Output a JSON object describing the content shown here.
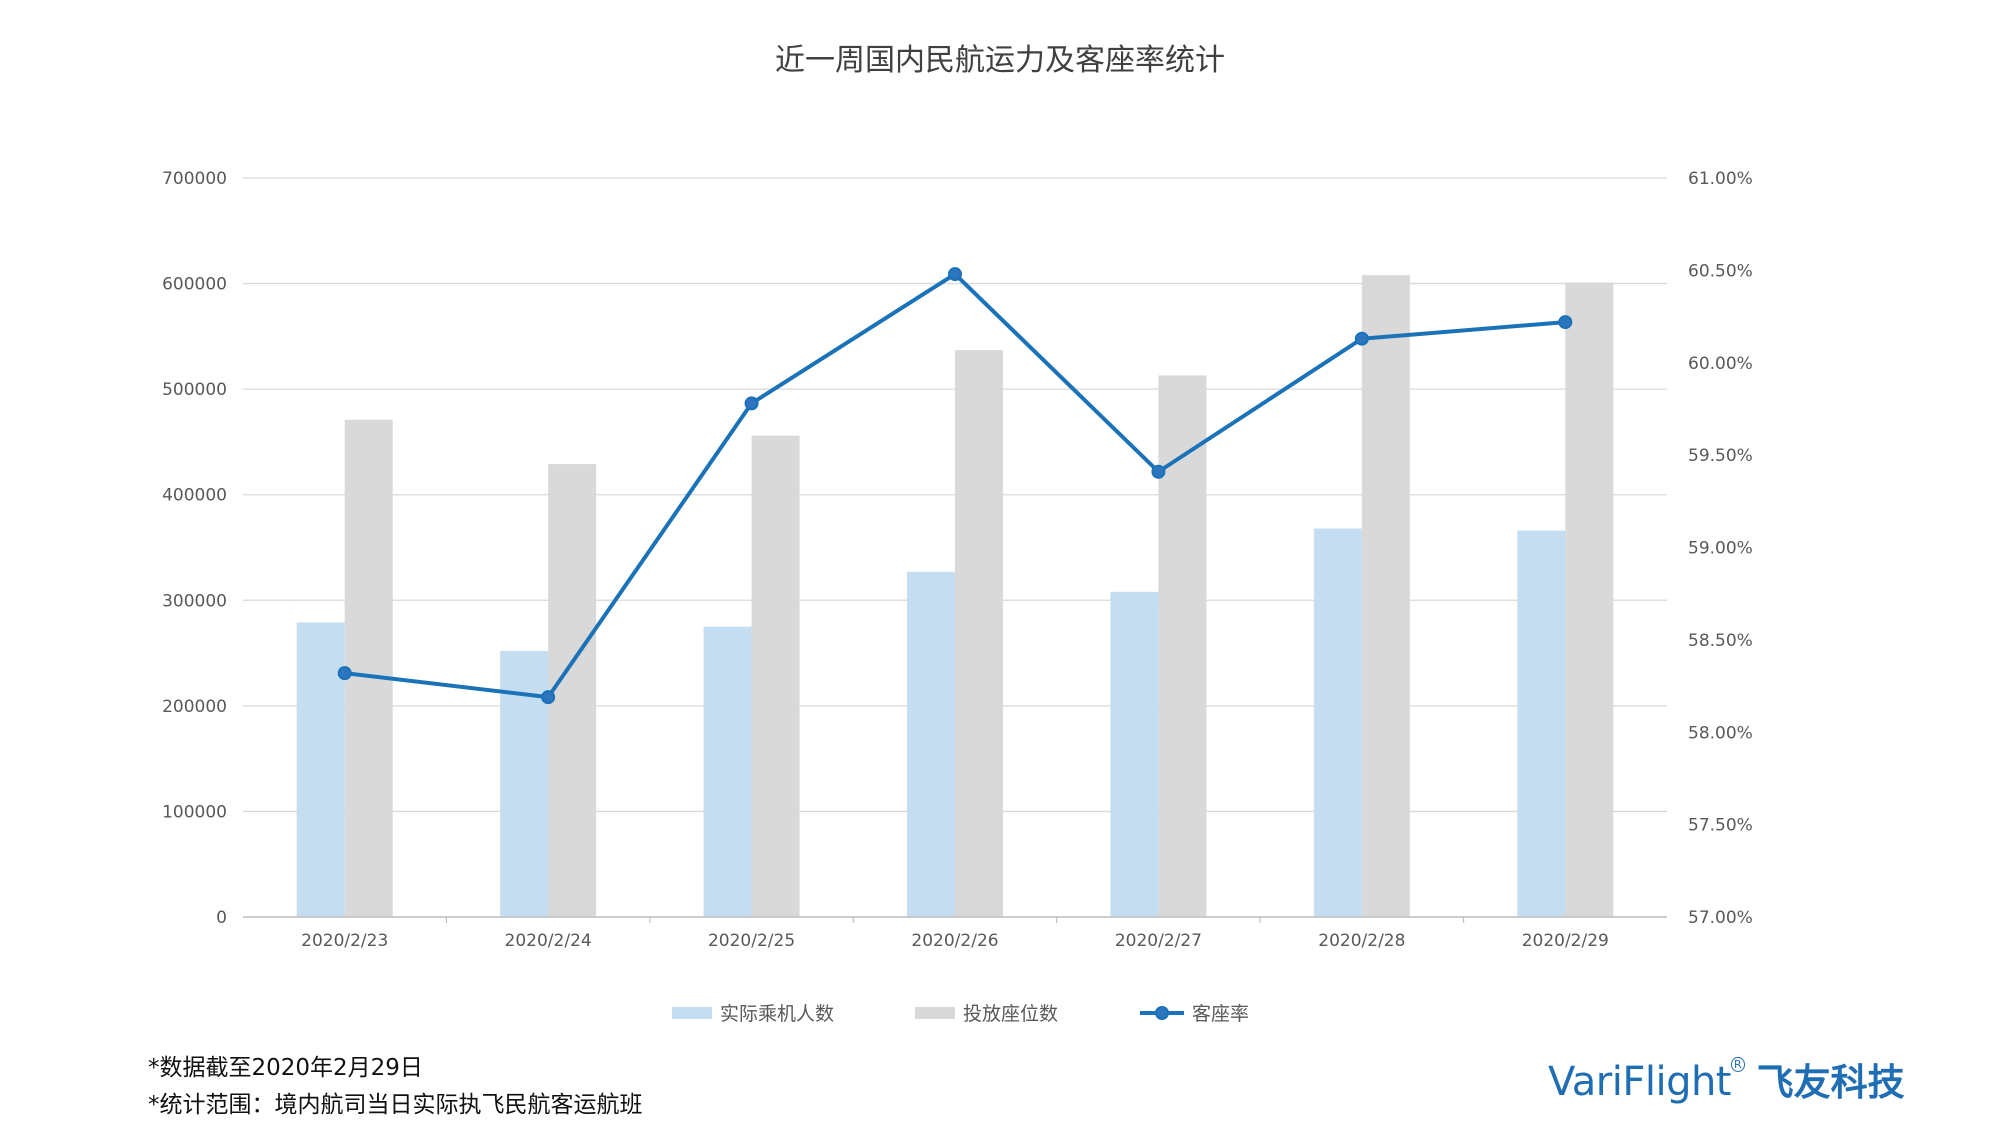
{
  "chart_data": {
    "type": "bar",
    "title": "近一周国内民航运力及客座率统计",
    "categories": [
      "2020/2/23",
      "2020/2/24",
      "2020/2/25",
      "2020/2/26",
      "2020/2/27",
      "2020/2/28",
      "2020/2/29"
    ],
    "series": [
      {
        "name": "实际乘机人数",
        "type": "bar",
        "axis": "left",
        "color": "#c5ddf1",
        "values": [
          279000,
          252000,
          275000,
          327000,
          308000,
          368000,
          366000
        ]
      },
      {
        "name": "投放座位数",
        "type": "bar",
        "axis": "left",
        "color": "#d9d9d9",
        "values": [
          471000,
          429000,
          456000,
          537000,
          513000,
          608000,
          601000
        ]
      },
      {
        "name": "客座率",
        "type": "line",
        "axis": "right",
        "color": "#1a72b8",
        "values": [
          58.32,
          58.19,
          59.78,
          60.48,
          59.41,
          60.13,
          60.22
        ]
      }
    ],
    "y_left": {
      "ylim": [
        0,
        700000
      ],
      "ticks": [
        "0",
        "100000",
        "200000",
        "300000",
        "400000",
        "500000",
        "600000",
        "700000"
      ]
    },
    "y_right": {
      "ylim": [
        57.0,
        61.0
      ],
      "ticks": [
        "57.00%",
        "57.50%",
        "58.00%",
        "58.50%",
        "59.00%",
        "59.50%",
        "60.00%",
        "60.50%",
        "61.00%"
      ]
    },
    "xlabel": "",
    "ylabel": "",
    "grid": true,
    "legend": "bottom"
  },
  "footnotes": [
    "*数据截至2020年2月29日",
    "*统计范围：境内航司当日实际执飞民航客运航班"
  ],
  "brand": {
    "name_en": "VariFlight",
    "registered": "R",
    "name_cn": "飞友科技"
  }
}
